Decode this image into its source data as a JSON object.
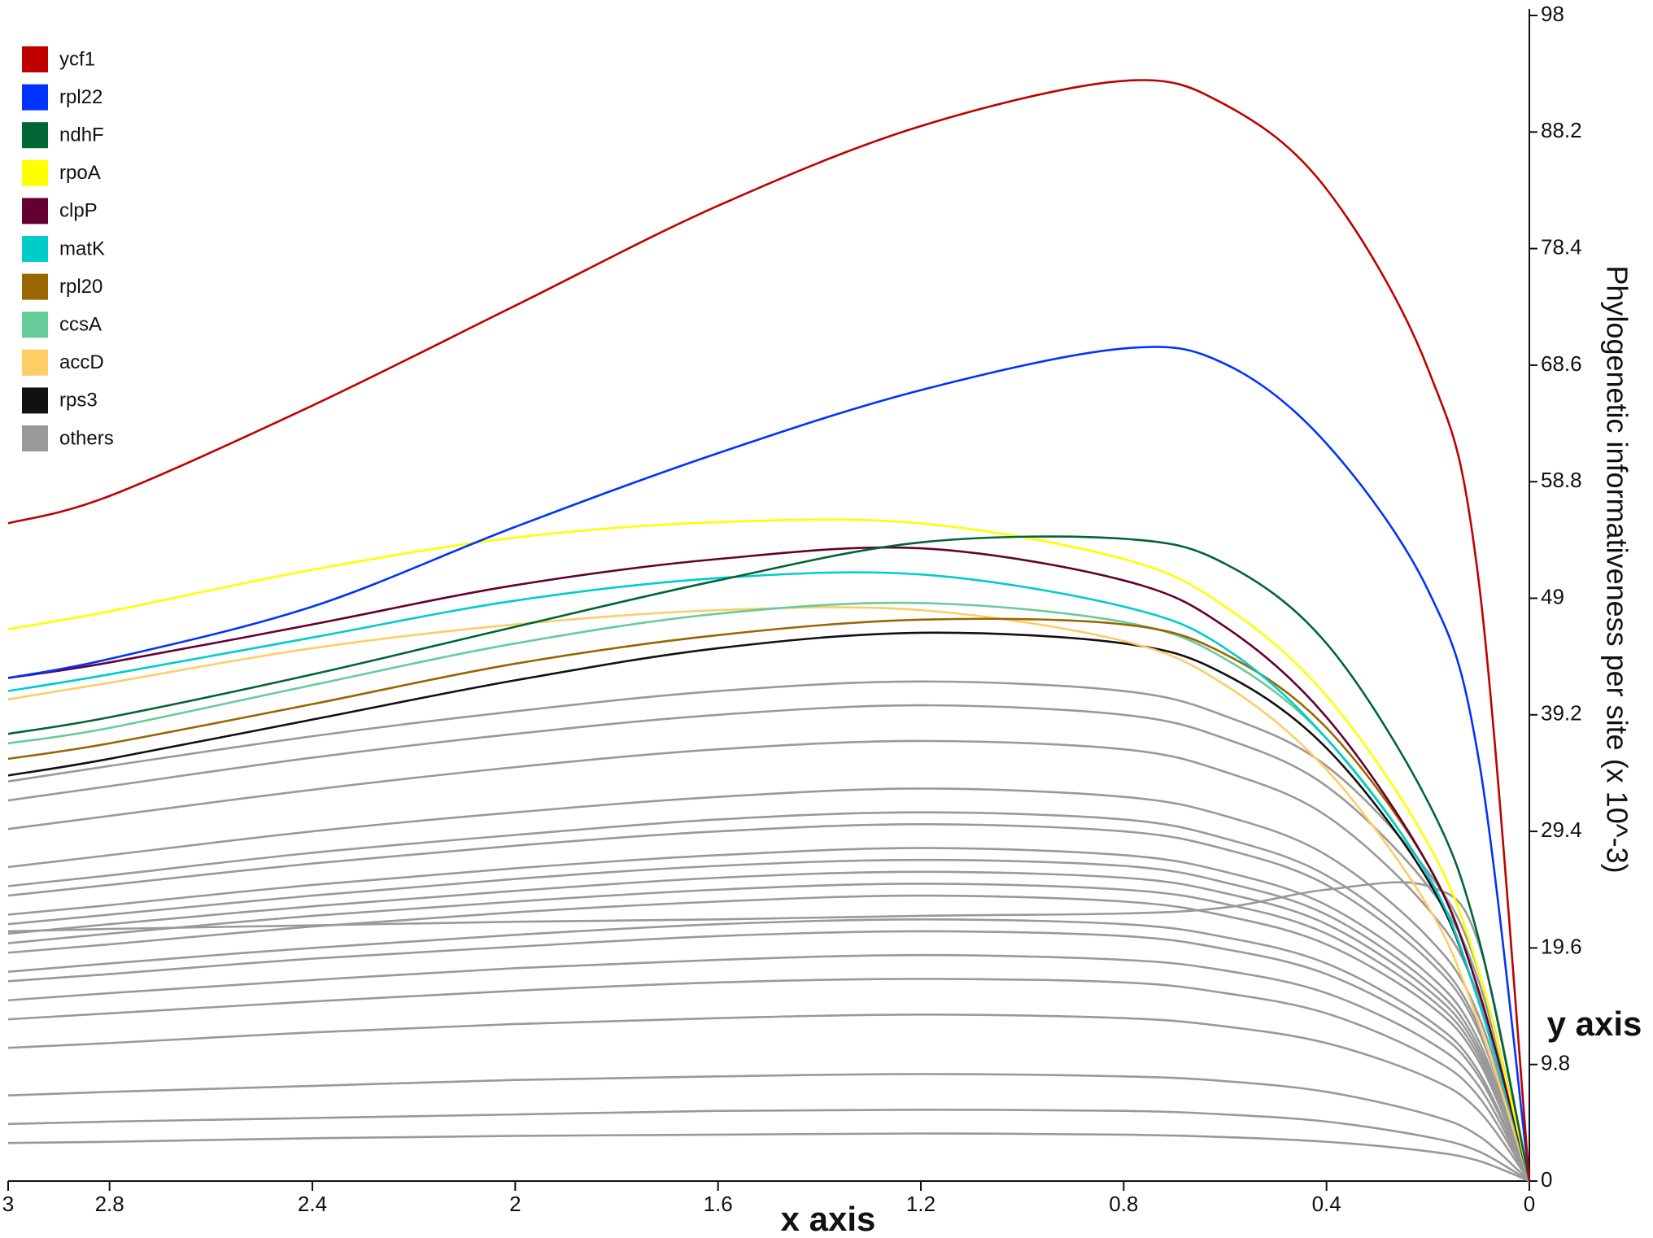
{
  "chart_data": {
    "type": "line",
    "x_label": "x axis",
    "y_label_short": "y axis",
    "y_label": "Phylogenetic informativeness per site (x 10^-3)",
    "x": [
      3,
      2.8,
      2.4,
      2,
      1.6,
      1.2,
      0.8,
      0.6,
      0.4,
      0.2,
      0.1,
      0
    ],
    "xlim": [
      3,
      0
    ],
    "xticks": [
      3,
      2.8,
      2.4,
      2,
      1.6,
      1.2,
      0.8,
      0.4,
      0
    ],
    "ylim": [
      0,
      98
    ],
    "yticks": [
      0,
      9.8,
      19.6,
      29.4,
      39.2,
      49,
      58.8,
      68.6,
      78.4,
      88.2,
      98
    ],
    "legend": "upper left",
    "series": [
      {
        "name": "ycf1",
        "color": "#c00000",
        "values": [
          55.3,
          57.6,
          65.2,
          73.6,
          82,
          88.7,
          92.5,
          90.5,
          83.4,
          68.3,
          50.5,
          0
        ]
      },
      {
        "name": "rpl22",
        "color": "#0033ff",
        "values": [
          42.3,
          43.9,
          48.3,
          55,
          61.2,
          66.5,
          70,
          68.7,
          62,
          49.7,
          35.5,
          0
        ]
      },
      {
        "name": "ndhF",
        "color": "#006633",
        "values": [
          37.6,
          39,
          42.6,
          46.6,
          50.5,
          53.7,
          54,
          51.9,
          45.2,
          31.9,
          20.4,
          0
        ]
      },
      {
        "name": "rpoA",
        "color": "#ffff00",
        "values": [
          46.4,
          47.9,
          51.4,
          54.1,
          55.4,
          55.3,
          52.3,
          48.3,
          40.8,
          28.4,
          17.7,
          0
        ]
      },
      {
        "name": "clpP",
        "color": "#660033",
        "values": [
          42.3,
          43.6,
          46.8,
          50.1,
          52.3,
          53.2,
          50.5,
          46.6,
          39,
          26.6,
          16,
          0
        ]
      },
      {
        "name": "matK",
        "color": "#00cccc",
        "values": [
          41.2,
          42.6,
          45.7,
          48.8,
          50.7,
          51,
          48.3,
          44.8,
          37.2,
          25.7,
          15.1,
          0
        ]
      },
      {
        "name": "rpl20",
        "color": "#996600",
        "values": [
          35.5,
          36.8,
          40.1,
          43.5,
          45.9,
          47.2,
          46.8,
          44.3,
          38.1,
          26.6,
          16,
          0
        ]
      },
      {
        "name": "ccsA",
        "color": "#66cc99",
        "values": [
          36.8,
          38.1,
          41.7,
          45.2,
          47.7,
          48.6,
          47,
          43.9,
          37.2,
          25.7,
          15.1,
          0
        ]
      },
      {
        "name": "accD",
        "color": "#ffcc66",
        "values": [
          40.5,
          41.9,
          44.8,
          46.8,
          48,
          48,
          45.4,
          41.7,
          34.6,
          23.1,
          13.3,
          0
        ]
      },
      {
        "name": "rps3",
        "color": "#111111",
        "values": [
          34.1,
          35.5,
          38.8,
          42.1,
          44.8,
          46.1,
          45.2,
          42.6,
          36.4,
          25.3,
          15.1,
          0
        ]
      }
    ],
    "others": {
      "name": "others",
      "color": "#999999",
      "lines": [
        [
          33.6,
          34.9,
          37.4,
          39.5,
          41.2,
          42,
          41.2,
          39.1,
          34.9,
          26,
          17.6,
          0
        ],
        [
          32,
          33.2,
          35.6,
          37.6,
          39.2,
          40,
          39.2,
          37.2,
          33.2,
          24.8,
          16.8,
          0
        ],
        [
          29.6,
          30.7,
          32.9,
          34.8,
          36.3,
          37,
          36.3,
          34.4,
          30.7,
          22.9,
          15.5,
          0
        ],
        [
          26.4,
          27.4,
          29.4,
          31,
          32.3,
          33,
          32.3,
          30.7,
          27.4,
          20.5,
          13.9,
          0
        ],
        [
          24.8,
          25.7,
          27.6,
          29.1,
          30.4,
          31,
          30.4,
          28.8,
          25.7,
          19.2,
          13,
          0
        ],
        [
          24,
          24.9,
          26.7,
          28.2,
          29.4,
          30,
          29.4,
          27.9,
          24.9,
          18.6,
          12.6,
          0
        ],
        [
          22.4,
          23.2,
          24.9,
          26.3,
          27.4,
          28,
          27.4,
          26,
          23.2,
          17.4,
          11.8,
          0
        ],
        [
          21.6,
          22.4,
          24,
          25.4,
          26.5,
          27,
          26.5,
          25.1,
          22.4,
          16.7,
          11.3,
          0
        ],
        [
          20.8,
          21.6,
          23.1,
          24.4,
          25.5,
          26,
          25.5,
          24.2,
          21.6,
          16.1,
          10.9,
          0
        ],
        [
          20,
          20.8,
          22.3,
          23.5,
          24.5,
          25,
          24.5,
          23.3,
          20.8,
          15.5,
          10.5,
          0
        ],
        [
          19.2,
          19.9,
          21.4,
          22.6,
          23.5,
          24,
          23.5,
          22.3,
          19.9,
          14.9,
          10.1,
          0
        ],
        [
          17.6,
          18.3,
          19.6,
          20.7,
          21.6,
          22,
          21.6,
          20.5,
          18.3,
          13.6,
          9.2,
          0
        ],
        [
          16.8,
          17.4,
          18.7,
          19.7,
          20.6,
          21,
          20.6,
          19.5,
          17.4,
          13,
          8.8,
          0
        ],
        [
          15.2,
          15.8,
          16.9,
          17.9,
          18.6,
          19,
          18.6,
          17.7,
          15.8,
          11.8,
          8,
          0
        ],
        [
          13.6,
          14.1,
          15.1,
          16,
          16.7,
          17,
          16.7,
          15.8,
          14.1,
          10.5,
          7.1,
          0
        ],
        [
          11.2,
          11.6,
          12.5,
          13.2,
          13.7,
          14,
          13.7,
          13,
          11.6,
          8.7,
          5.9,
          0
        ],
        [
          7.2,
          7.5,
          8,
          8.5,
          8.8,
          9,
          8.8,
          8.4,
          7.5,
          5.6,
          3.8,
          0
        ],
        [
          4.8,
          5,
          5.3,
          5.6,
          5.9,
          6,
          5.9,
          5.6,
          5,
          3.7,
          2.5,
          0
        ],
        [
          3.2,
          3.3,
          3.6,
          3.8,
          3.9,
          4,
          3.9,
          3.7,
          3.3,
          2.5,
          1.7,
          0
        ],
        [
          21,
          21.2,
          21.5,
          21.8,
          22,
          22.3,
          22.5,
          23,
          24.5,
          24.8,
          20,
          0
        ]
      ]
    }
  }
}
